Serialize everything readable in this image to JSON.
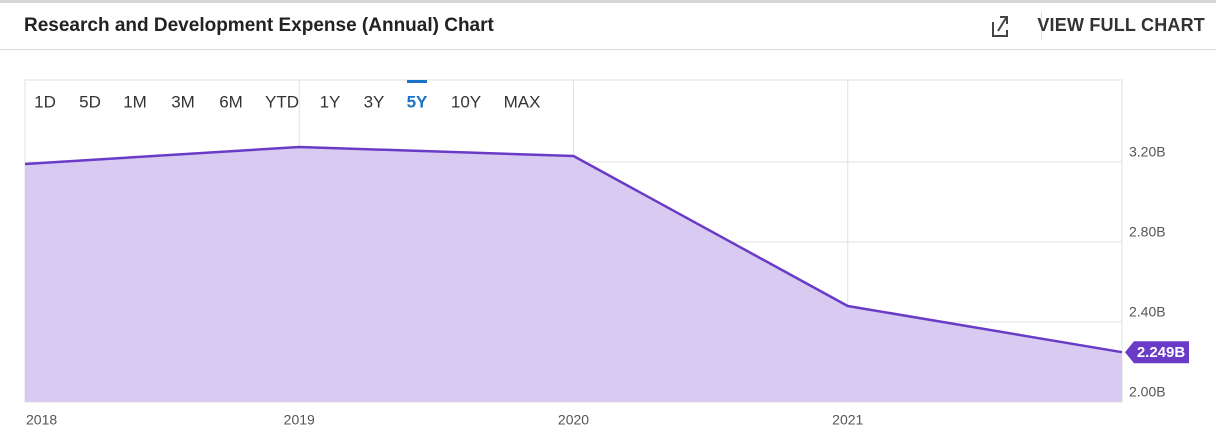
{
  "header": {
    "title": "Research and Development Expense (Annual) Chart",
    "action": "VIEW FULL CHART"
  },
  "range_buttons": [
    "1D",
    "5D",
    "1M",
    "3M",
    "6M",
    "YTD",
    "1Y",
    "3Y",
    "5Y",
    "10Y",
    "MAX"
  ],
  "active_range_index": 8,
  "chart_data": {
    "type": "area",
    "x": [
      2018,
      2019,
      2020,
      2021,
      2022
    ],
    "values": [
      3.19,
      3.275,
      3.23,
      2.48,
      2.249
    ],
    "value_labels": [
      null,
      null,
      null,
      null,
      "2.249B"
    ],
    "color": "#6a3bc6",
    "fill": "#d8caf0",
    "xlim": [
      2018,
      2022
    ],
    "xticks": [
      2018,
      2019,
      2020,
      2021
    ],
    "ylim": [
      2.0,
      3.61
    ],
    "yticks": [
      {
        "value": 2.0,
        "label": "2.00B"
      },
      {
        "value": 2.4,
        "label": "2.40B"
      },
      {
        "value": 2.8,
        "label": "2.80B"
      },
      {
        "value": 3.2,
        "label": "3.20B"
      }
    ],
    "grid": true
  }
}
